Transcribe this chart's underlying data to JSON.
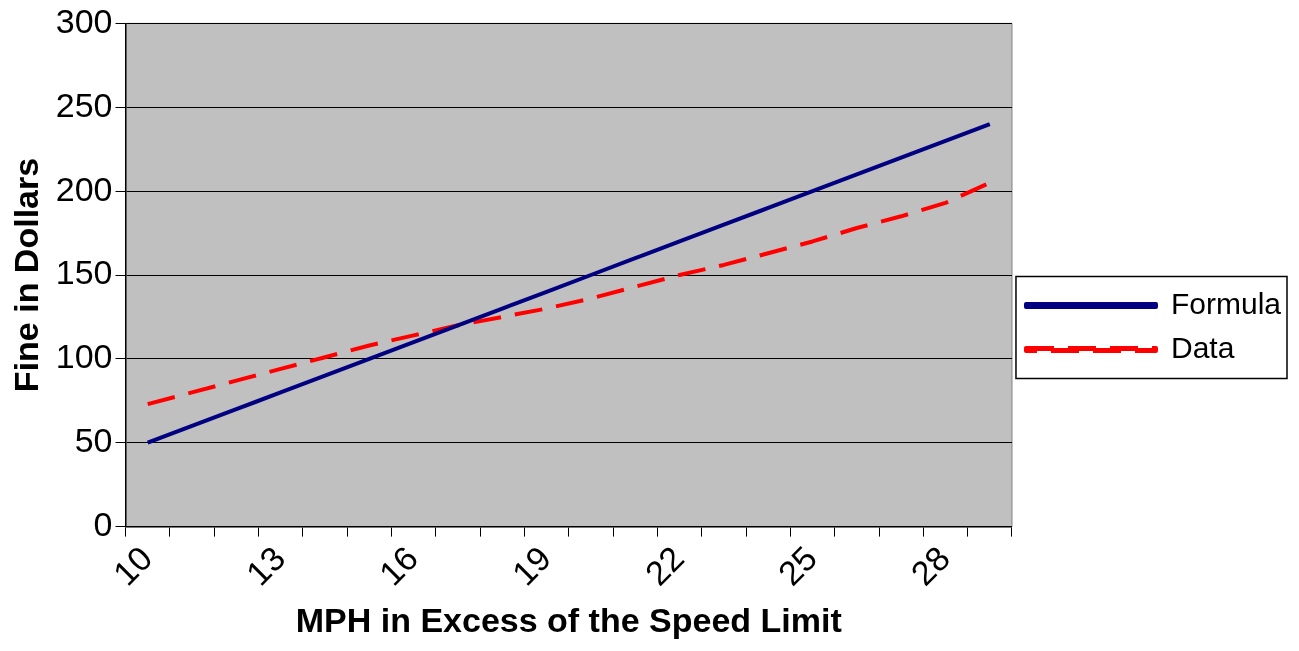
{
  "chart_data": {
    "type": "line",
    "xlabel": "MPH in Excess of the Speed Limit",
    "ylabel": "Fine in Dollars",
    "categories": [
      "10",
      null,
      null,
      "13",
      null,
      null,
      "16",
      null,
      null,
      "19",
      null,
      null,
      "22",
      null,
      null,
      "25",
      null,
      null,
      "28",
      null
    ],
    "series": [
      {
        "name": "Formula",
        "color": "#000080",
        "line_style": "solid",
        "values": [
          50,
          60,
          70,
          80,
          90,
          100,
          110,
          120,
          130,
          140,
          150,
          160,
          170,
          180,
          190,
          200,
          210,
          220,
          230,
          240
        ]
      },
      {
        "name": "Data",
        "color": "#ff0000",
        "line_style": "dashed",
        "values": [
          73,
          80,
          87,
          94,
          101,
          108,
          114,
          120,
          125,
          130,
          136,
          143,
          150,
          156,
          163,
          170,
          178,
          185,
          193,
          205
        ]
      }
    ],
    "ylim": [
      0,
      300
    ],
    "yticks": [
      0,
      50,
      100,
      150,
      200,
      250,
      300
    ],
    "grid": "y",
    "legend": "right",
    "marker": "none"
  }
}
